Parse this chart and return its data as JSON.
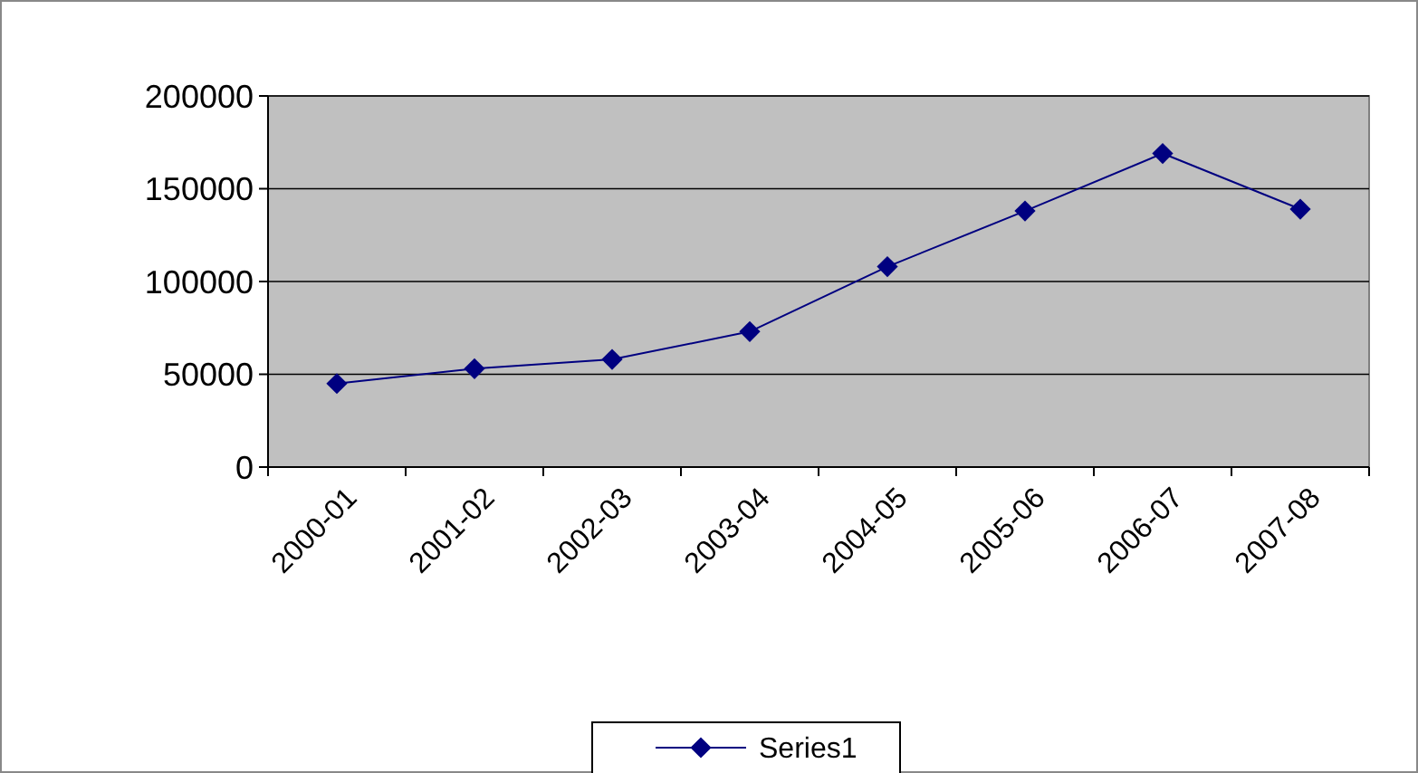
{
  "chart_data": {
    "type": "line",
    "categories": [
      "2000-01",
      "2001-02",
      "2002-03",
      "2003-04",
      "2004-05",
      "2005-06",
      "2006-07",
      "2007-08"
    ],
    "series": [
      {
        "name": "Series1",
        "color": "#000080",
        "values": [
          45000,
          53000,
          58000,
          73000,
          108000,
          138000,
          169000,
          139000
        ]
      }
    ],
    "ylim": [
      0,
      200000
    ],
    "yticks": [
      0,
      50000,
      100000,
      150000,
      200000
    ],
    "grid": "y",
    "legend": "bottom",
    "marker": "diamond",
    "line_style": "solid"
  }
}
